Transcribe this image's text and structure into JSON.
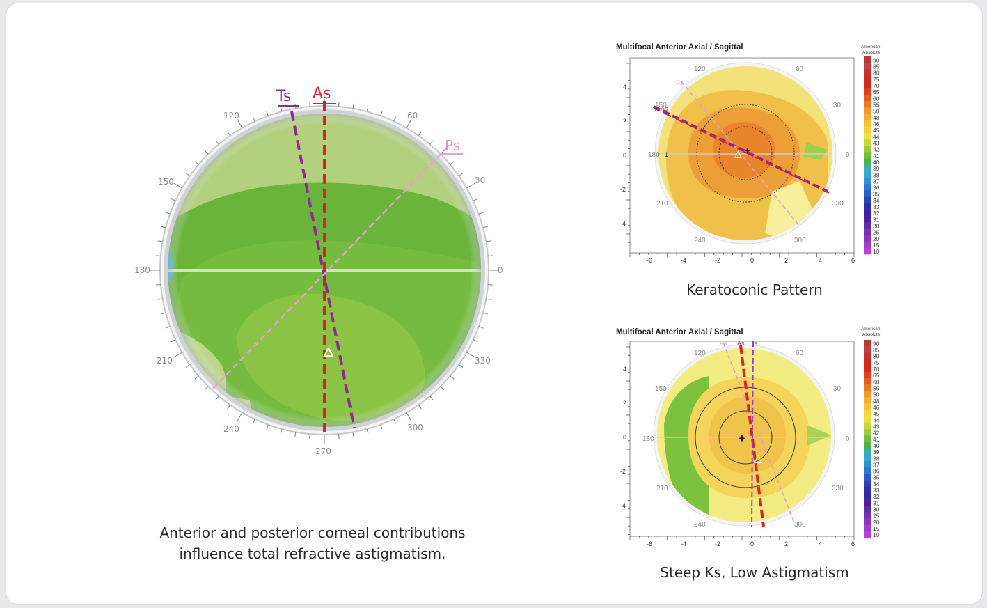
{
  "left_map": {
    "labels": {
      "ts": "Ts",
      "as": "As",
      "ps": "Ps"
    },
    "degrees": [
      "120",
      "60",
      "30",
      "150",
      "180",
      "0",
      "210",
      "330",
      "240",
      "300",
      "270"
    ],
    "caption": [
      "Anterior and posterior corneal contributions",
      "influence total refractive astigmatism."
    ]
  },
  "maps": [
    {
      "title": "Multifocal Anterior Axial / Sagittal",
      "scale_header": [
        "American",
        "Absolute"
      ],
      "caption": "Keratoconic Pattern",
      "axis_labels": [
        "4",
        "2",
        "0",
        "-2",
        "-4",
        "-6",
        "-4",
        "-2",
        "0",
        "2",
        "4",
        "6"
      ],
      "degrees": [
        "120",
        "60",
        "150",
        "30",
        "180",
        "0",
        "210",
        "330",
        "240",
        "300"
      ],
      "line_labels": [
        "Ps",
        "Ts",
        "As"
      ],
      "center_label": "1"
    },
    {
      "title": "Multifocal Anterior Axial / Sagittal",
      "scale_header": [
        "American",
        "Absolute"
      ],
      "caption": "Steep Ks, Low Astigmatism",
      "axis_labels": [
        "4",
        "2",
        "0",
        "-2",
        "-4",
        "-6",
        "-4",
        "-2",
        "0",
        "2",
        "4",
        "6"
      ],
      "degrees": [
        "120",
        "60",
        "150",
        "30",
        "180",
        "0",
        "210",
        "330",
        "240",
        "300"
      ],
      "line_labels": [
        "Ps",
        "As",
        "Ts"
      ]
    }
  ],
  "scale_values": [
    "90",
    "85",
    "80",
    "75",
    "70",
    "65",
    "60",
    "55",
    "50",
    "48",
    "46",
    "45",
    "44",
    "43",
    "42",
    "41",
    "40",
    "39",
    "38",
    "37",
    "36",
    "35",
    "34",
    "33",
    "32",
    "31",
    "30",
    "25",
    "20",
    "15",
    "10"
  ],
  "colors": {
    "as_line": "#d8232a",
    "ts_line": "#8e2b8e",
    "ps_line": "#e6a0d6"
  }
}
